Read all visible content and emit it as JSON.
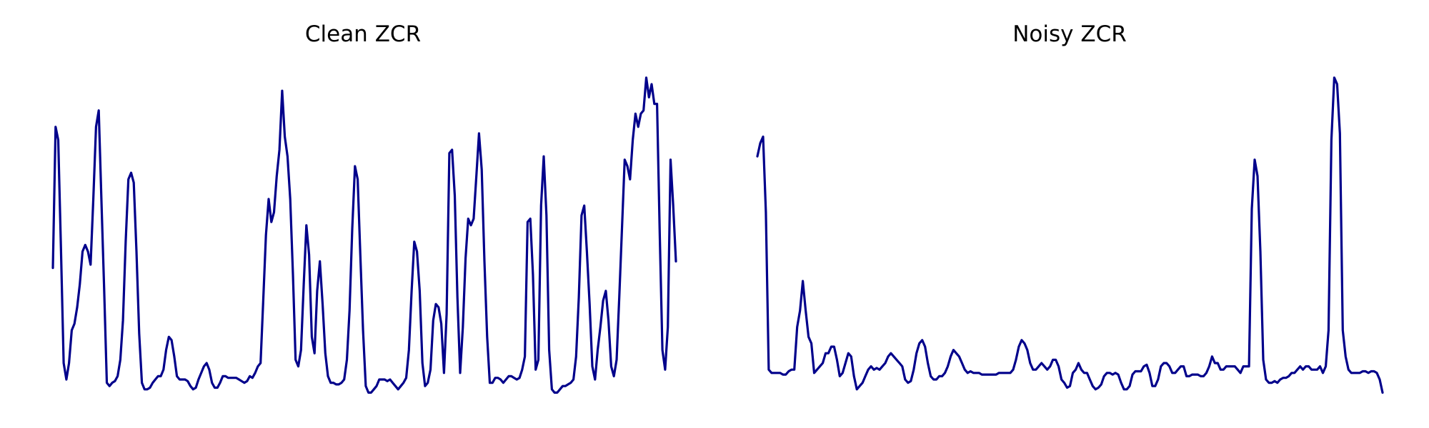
{
  "line_color": "#00008b",
  "chart_data": [
    {
      "type": "line",
      "title": "Clean ZCR",
      "xlabel": "",
      "ylabel": "",
      "axes": "off",
      "grid": false,
      "ylim": [
        0,
        1
      ],
      "y": [
        0.39,
        0.82,
        0.78,
        0.45,
        0.1,
        0.05,
        0.1,
        0.2,
        0.22,
        0.27,
        0.34,
        0.44,
        0.46,
        0.44,
        0.4,
        0.6,
        0.82,
        0.87,
        0.6,
        0.33,
        0.04,
        0.03,
        0.04,
        0.045,
        0.06,
        0.11,
        0.23,
        0.47,
        0.66,
        0.68,
        0.65,
        0.44,
        0.19,
        0.04,
        0.02,
        0.02,
        0.025,
        0.04,
        0.05,
        0.06,
        0.06,
        0.08,
        0.14,
        0.18,
        0.17,
        0.12,
        0.06,
        0.05,
        0.05,
        0.05,
        0.045,
        0.03,
        0.02,
        0.025,
        0.05,
        0.07,
        0.09,
        0.1,
        0.08,
        0.04,
        0.025,
        0.025,
        0.04,
        0.06,
        0.06,
        0.055,
        0.055,
        0.055,
        0.055,
        0.05,
        0.045,
        0.04,
        0.045,
        0.06,
        0.055,
        0.07,
        0.09,
        0.1,
        0.29,
        0.49,
        0.6,
        0.53,
        0.56,
        0.67,
        0.75,
        0.93,
        0.79,
        0.73,
        0.6,
        0.37,
        0.11,
        0.09,
        0.14,
        0.34,
        0.52,
        0.43,
        0.18,
        0.13,
        0.32,
        0.41,
        0.28,
        0.13,
        0.06,
        0.04,
        0.04,
        0.035,
        0.035,
        0.04,
        0.05,
        0.11,
        0.26,
        0.51,
        0.7,
        0.66,
        0.43,
        0.2,
        0.03,
        0.01,
        0.01,
        0.02,
        0.03,
        0.05,
        0.05,
        0.05,
        0.045,
        0.05,
        0.04,
        0.03,
        0.02,
        0.03,
        0.04,
        0.055,
        0.14,
        0.32,
        0.47,
        0.44,
        0.32,
        0.1,
        0.03,
        0.04,
        0.08,
        0.23,
        0.28,
        0.27,
        0.22,
        0.07,
        0.25,
        0.74,
        0.75,
        0.61,
        0.3,
        0.07,
        0.21,
        0.42,
        0.54,
        0.52,
        0.54,
        0.67,
        0.8,
        0.69,
        0.41,
        0.18,
        0.04,
        0.04,
        0.055,
        0.055,
        0.05,
        0.04,
        0.05,
        0.06,
        0.06,
        0.055,
        0.05,
        0.055,
        0.08,
        0.12,
        0.53,
        0.54,
        0.37,
        0.08,
        0.11,
        0.58,
        0.73,
        0.55,
        0.14,
        0.02,
        0.01,
        0.01,
        0.02,
        0.03,
        0.03,
        0.035,
        0.04,
        0.05,
        0.12,
        0.3,
        0.55,
        0.58,
        0.44,
        0.28,
        0.09,
        0.05,
        0.14,
        0.21,
        0.29,
        0.32,
        0.23,
        0.09,
        0.06,
        0.11,
        0.3,
        0.51,
        0.72,
        0.7,
        0.66,
        0.78,
        0.86,
        0.82,
        0.86,
        0.87,
        0.97,
        0.91,
        0.95,
        0.89,
        0.89,
        0.49,
        0.14,
        0.08,
        0.21,
        0.72,
        0.58,
        0.41
      ]
    },
    {
      "type": "line",
      "title": "Noisy ZCR",
      "xlabel": "",
      "ylabel": "",
      "axes": "off",
      "grid": false,
      "ylim": [
        0,
        1
      ],
      "y": [
        0.73,
        0.77,
        0.79,
        0.56,
        0.08,
        0.07,
        0.07,
        0.07,
        0.07,
        0.065,
        0.065,
        0.075,
        0.08,
        0.08,
        0.21,
        0.26,
        0.35,
        0.26,
        0.18,
        0.16,
        0.07,
        0.08,
        0.09,
        0.1,
        0.13,
        0.13,
        0.15,
        0.15,
        0.11,
        0.06,
        0.07,
        0.1,
        0.13,
        0.12,
        0.06,
        0.02,
        0.03,
        0.04,
        0.06,
        0.08,
        0.09,
        0.08,
        0.085,
        0.08,
        0.09,
        0.1,
        0.12,
        0.13,
        0.12,
        0.11,
        0.1,
        0.09,
        0.05,
        0.04,
        0.045,
        0.08,
        0.13,
        0.16,
        0.17,
        0.15,
        0.1,
        0.06,
        0.05,
        0.05,
        0.06,
        0.06,
        0.07,
        0.09,
        0.12,
        0.14,
        0.13,
        0.12,
        0.1,
        0.08,
        0.07,
        0.075,
        0.07,
        0.07,
        0.07,
        0.065,
        0.065,
        0.065,
        0.065,
        0.065,
        0.065,
        0.07,
        0.07,
        0.07,
        0.07,
        0.07,
        0.08,
        0.11,
        0.15,
        0.17,
        0.16,
        0.14,
        0.1,
        0.08,
        0.08,
        0.09,
        0.1,
        0.09,
        0.08,
        0.09,
        0.11,
        0.11,
        0.09,
        0.05,
        0.04,
        0.025,
        0.03,
        0.07,
        0.08,
        0.1,
        0.08,
        0.07,
        0.07,
        0.05,
        0.03,
        0.02,
        0.025,
        0.035,
        0.06,
        0.07,
        0.07,
        0.065,
        0.07,
        0.065,
        0.04,
        0.02,
        0.02,
        0.03,
        0.065,
        0.075,
        0.075,
        0.075,
        0.09,
        0.095,
        0.07,
        0.03,
        0.03,
        0.05,
        0.09,
        0.1,
        0.1,
        0.09,
        0.07,
        0.07,
        0.08,
        0.09,
        0.09,
        0.06,
        0.06,
        0.065,
        0.065,
        0.065,
        0.06,
        0.06,
        0.07,
        0.09,
        0.12,
        0.1,
        0.1,
        0.08,
        0.08,
        0.09,
        0.09,
        0.09,
        0.09,
        0.08,
        0.07,
        0.09,
        0.09,
        0.09,
        0.57,
        0.72,
        0.67,
        0.44,
        0.11,
        0.05,
        0.04,
        0.04,
        0.045,
        0.04,
        0.05,
        0.055,
        0.055,
        0.06,
        0.07,
        0.07,
        0.08,
        0.09,
        0.08,
        0.09,
        0.09,
        0.08,
        0.08,
        0.08,
        0.09,
        0.07,
        0.09,
        0.2,
        0.78,
        0.97,
        0.95,
        0.8,
        0.2,
        0.12,
        0.08,
        0.07,
        0.07,
        0.07,
        0.07,
        0.075,
        0.075,
        0.07,
        0.075,
        0.075,
        0.07,
        0.05,
        0.01
      ]
    }
  ]
}
